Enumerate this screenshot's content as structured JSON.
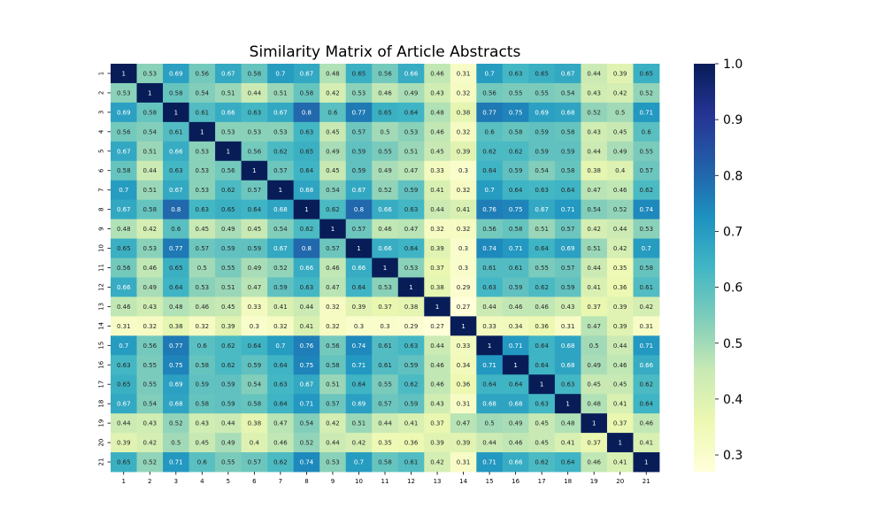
{
  "chart_data": {
    "type": "heatmap",
    "title": "Similarity Matrix of Article Abstracts",
    "xlabel": "",
    "ylabel": "",
    "labels": [
      "1",
      "2",
      "3",
      "4",
      "5",
      "6",
      "7",
      "8",
      "9",
      "10",
      "11",
      "12",
      "13",
      "14",
      "15",
      "16",
      "17",
      "18",
      "19",
      "20",
      "21"
    ],
    "colormap": "YlGnBu",
    "vmin": 0.27,
    "vmax": 1.0,
    "colorbar_ticks": [
      "0.3",
      "0.4",
      "0.5",
      "0.6",
      "0.7",
      "0.8",
      "0.9",
      "1.0"
    ],
    "matrix": [
      [
        1,
        0.53,
        0.69,
        0.56,
        0.67,
        0.58,
        0.7,
        0.67,
        0.48,
        0.65,
        0.56,
        0.66,
        0.46,
        0.31,
        0.7,
        0.63,
        0.65,
        0.67,
        0.44,
        0.39,
        0.65
      ],
      [
        0.53,
        1,
        0.58,
        0.54,
        0.51,
        0.44,
        0.51,
        0.58,
        0.42,
        0.53,
        0.46,
        0.49,
        0.43,
        0.32,
        0.56,
        0.55,
        0.55,
        0.54,
        0.43,
        0.42,
        0.52
      ],
      [
        0.69,
        0.58,
        1,
        0.61,
        0.66,
        0.63,
        0.67,
        0.8,
        0.6,
        0.77,
        0.65,
        0.64,
        0.48,
        0.38,
        0.77,
        0.75,
        0.69,
        0.68,
        0.52,
        0.5,
        0.71
      ],
      [
        0.56,
        0.54,
        0.61,
        1,
        0.53,
        0.53,
        0.53,
        0.63,
        0.45,
        0.57,
        0.5,
        0.53,
        0.46,
        0.32,
        0.6,
        0.58,
        0.59,
        0.58,
        0.43,
        0.45,
        0.6
      ],
      [
        0.67,
        0.51,
        0.66,
        0.53,
        1,
        0.56,
        0.62,
        0.65,
        0.49,
        0.59,
        0.55,
        0.51,
        0.45,
        0.39,
        0.62,
        0.62,
        0.59,
        0.59,
        0.44,
        0.49,
        0.55
      ],
      [
        0.58,
        0.44,
        0.63,
        0.53,
        0.56,
        1,
        0.57,
        0.64,
        0.45,
        0.59,
        0.49,
        0.47,
        0.33,
        0.3,
        0.64,
        0.59,
        0.54,
        0.58,
        0.38,
        0.4,
        0.57
      ],
      [
        0.7,
        0.51,
        0.67,
        0.53,
        0.62,
        0.57,
        1,
        0.68,
        0.54,
        0.67,
        0.52,
        0.59,
        0.41,
        0.32,
        0.7,
        0.64,
        0.63,
        0.64,
        0.47,
        0.46,
        0.62
      ],
      [
        0.67,
        0.58,
        0.8,
        0.63,
        0.65,
        0.64,
        0.68,
        1,
        0.62,
        0.8,
        0.66,
        0.63,
        0.44,
        0.41,
        0.76,
        0.75,
        0.67,
        0.71,
        0.54,
        0.52,
        0.74
      ],
      [
        0.48,
        0.42,
        0.6,
        0.45,
        0.49,
        0.45,
        0.54,
        0.62,
        1,
        0.57,
        0.46,
        0.47,
        0.32,
        0.32,
        0.56,
        0.58,
        0.51,
        0.57,
        0.42,
        0.44,
        0.53
      ],
      [
        0.65,
        0.53,
        0.77,
        0.57,
        0.59,
        0.59,
        0.67,
        0.8,
        0.57,
        1,
        0.66,
        0.64,
        0.39,
        0.3,
        0.74,
        0.71,
        0.64,
        0.69,
        0.51,
        0.42,
        0.7
      ],
      [
        0.56,
        0.46,
        0.65,
        0.5,
        0.55,
        0.49,
        0.52,
        0.66,
        0.46,
        0.66,
        1,
        0.53,
        0.37,
        0.3,
        0.61,
        0.61,
        0.55,
        0.57,
        0.44,
        0.35,
        0.58
      ],
      [
        0.66,
        0.49,
        0.64,
        0.53,
        0.51,
        0.47,
        0.59,
        0.63,
        0.47,
        0.64,
        0.53,
        1,
        0.38,
        0.29,
        0.63,
        0.59,
        0.62,
        0.59,
        0.41,
        0.36,
        0.61
      ],
      [
        0.46,
        0.43,
        0.48,
        0.46,
        0.45,
        0.33,
        0.41,
        0.44,
        0.32,
        0.39,
        0.37,
        0.38,
        1,
        0.27,
        0.44,
        0.46,
        0.46,
        0.43,
        0.37,
        0.39,
        0.42
      ],
      [
        0.31,
        0.32,
        0.38,
        0.32,
        0.39,
        0.3,
        0.32,
        0.41,
        0.32,
        0.3,
        0.3,
        0.29,
        0.27,
        1,
        0.33,
        0.34,
        0.36,
        0.31,
        0.47,
        0.39,
        0.31
      ],
      [
        0.7,
        0.56,
        0.77,
        0.6,
        0.62,
        0.64,
        0.7,
        0.76,
        0.56,
        0.74,
        0.61,
        0.63,
        0.44,
        0.33,
        1,
        0.71,
        0.64,
        0.68,
        0.5,
        0.44,
        0.71
      ],
      [
        0.63,
        0.55,
        0.75,
        0.58,
        0.62,
        0.59,
        0.64,
        0.75,
        0.58,
        0.71,
        0.61,
        0.59,
        0.46,
        0.34,
        0.71,
        1,
        0.64,
        0.68,
        0.49,
        0.46,
        0.66
      ],
      [
        0.65,
        0.55,
        0.69,
        0.59,
        0.59,
        0.54,
        0.63,
        0.67,
        0.51,
        0.64,
        0.55,
        0.62,
        0.46,
        0.36,
        0.64,
        0.64,
        1,
        0.63,
        0.45,
        0.45,
        0.62
      ],
      [
        0.67,
        0.54,
        0.68,
        0.58,
        0.59,
        0.58,
        0.64,
        0.71,
        0.57,
        0.69,
        0.57,
        0.59,
        0.43,
        0.31,
        0.68,
        0.68,
        0.63,
        1,
        0.48,
        0.41,
        0.64
      ],
      [
        0.44,
        0.43,
        0.52,
        0.43,
        0.44,
        0.38,
        0.47,
        0.54,
        0.42,
        0.51,
        0.44,
        0.41,
        0.37,
        0.47,
        0.5,
        0.49,
        0.45,
        0.48,
        1,
        0.37,
        0.46
      ],
      [
        0.39,
        0.42,
        0.5,
        0.45,
        0.49,
        0.4,
        0.46,
        0.52,
        0.44,
        0.42,
        0.35,
        0.36,
        0.39,
        0.39,
        0.44,
        0.46,
        0.45,
        0.41,
        0.37,
        1,
        0.41
      ],
      [
        0.65,
        0.52,
        0.71,
        0.6,
        0.55,
        0.57,
        0.62,
        0.74,
        0.53,
        0.7,
        0.58,
        0.61,
        0.42,
        0.31,
        0.71,
        0.66,
        0.62,
        0.64,
        0.46,
        0.41,
        1
      ]
    ]
  }
}
